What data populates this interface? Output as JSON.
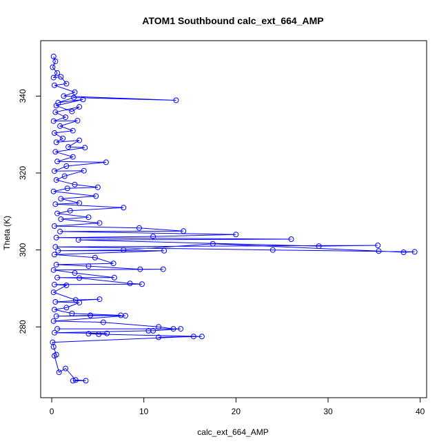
{
  "chart_data": {
    "type": "scatter",
    "title": "ATOM1 Southbound calc_ext_664_AMP",
    "xlabel": "calc_ext_664_AMP",
    "ylabel": "Theta (K)",
    "xlim": [
      -1.2,
      40.7
    ],
    "ylim": [
      261.6,
      354.4
    ],
    "xticks": [
      0,
      10,
      20,
      30,
      40
    ],
    "yticks": [
      280,
      300,
      320,
      340
    ],
    "grid": false,
    "legend": "none",
    "color": "#0000ff",
    "marker": "open-circle",
    "connected": true,
    "series": [
      {
        "points": [
          [
            0.2,
            350.3
          ],
          [
            0.4,
            349.0
          ],
          [
            0.1,
            347.5
          ],
          [
            0.6,
            346.0
          ],
          [
            0.2,
            344.8
          ],
          [
            1.0,
            345.0
          ],
          [
            1.6,
            343.2
          ],
          [
            0.3,
            342.8
          ],
          [
            2.5,
            341.0
          ],
          [
            1.3,
            340.0
          ],
          [
            13.5,
            338.9
          ],
          [
            2.4,
            339.6
          ],
          [
            0.7,
            338.3
          ],
          [
            3.4,
            339.1
          ],
          [
            0.5,
            337.5
          ],
          [
            2.2,
            336.0
          ],
          [
            3.0,
            337.2
          ],
          [
            0.4,
            335.8
          ],
          [
            1.5,
            334.5
          ],
          [
            0.2,
            333.5
          ],
          [
            2.8,
            333.6
          ],
          [
            0.9,
            332.2
          ],
          [
            2.3,
            331.0
          ],
          [
            0.3,
            330.4
          ],
          [
            1.2,
            329.0
          ],
          [
            0.5,
            328.0
          ],
          [
            3.0,
            328.5
          ],
          [
            1.8,
            326.8
          ],
          [
            3.6,
            326.6
          ],
          [
            0.4,
            325.5
          ],
          [
            2.3,
            324.2
          ],
          [
            0.6,
            323.0
          ],
          [
            5.9,
            322.8
          ],
          [
            1.6,
            321.8
          ],
          [
            0.3,
            320.5
          ],
          [
            3.5,
            320.6
          ],
          [
            1.4,
            319.2
          ],
          [
            0.5,
            318.2
          ],
          [
            2.5,
            317.0
          ],
          [
            5.0,
            316.3
          ],
          [
            1.7,
            316.0
          ],
          [
            0.2,
            315.2
          ],
          [
            4.8,
            314.0
          ],
          [
            1.0,
            313.3
          ],
          [
            3.0,
            312.2
          ],
          [
            0.4,
            311.9
          ],
          [
            7.8,
            311.0
          ],
          [
            2.0,
            310.2
          ],
          [
            0.6,
            309.5
          ],
          [
            4.0,
            308.5
          ],
          [
            1.0,
            308.0
          ],
          [
            5.2,
            307.0
          ],
          [
            0.3,
            306.2
          ],
          [
            9.5,
            305.7
          ],
          [
            14.3,
            304.9
          ],
          [
            0.9,
            304.8
          ],
          [
            20.0,
            304.0
          ],
          [
            11.0,
            303.5
          ],
          [
            0.5,
            303.2
          ],
          [
            26.0,
            302.8
          ],
          [
            2.9,
            302.6
          ],
          [
            29.0,
            301.0
          ],
          [
            35.4,
            301.2
          ],
          [
            0.4,
            300.8
          ],
          [
            24.0,
            300.0
          ],
          [
            39.4,
            299.5
          ],
          [
            38.2,
            299.4
          ],
          [
            35.5,
            299.7
          ],
          [
            17.5,
            301.6
          ],
          [
            7.8,
            300.0
          ],
          [
            0.7,
            299.8
          ],
          [
            12.2,
            299.8
          ],
          [
            0.3,
            298.8
          ],
          [
            4.7,
            298.0
          ],
          [
            6.7,
            296.5
          ],
          [
            0.5,
            296.2
          ],
          [
            4.0,
            295.8
          ],
          [
            9.6,
            295.0
          ],
          [
            12.1,
            295.0
          ],
          [
            0.2,
            294.8
          ],
          [
            2.5,
            294.0
          ],
          [
            6.8,
            292.8
          ],
          [
            0.6,
            292.8
          ],
          [
            3.0,
            292.7
          ],
          [
            8.5,
            291.3
          ],
          [
            9.8,
            291.1
          ],
          [
            0.3,
            291.0
          ],
          [
            1.6,
            290.8
          ],
          [
            0.2,
            289.0
          ],
          [
            2.6,
            287.0
          ],
          [
            5.2,
            287.2
          ],
          [
            0.4,
            286.5
          ],
          [
            3.0,
            286.3
          ],
          [
            1.6,
            285.0
          ],
          [
            0.3,
            284.5
          ],
          [
            2.2,
            283.5
          ],
          [
            7.5,
            283.0
          ],
          [
            0.5,
            282.8
          ],
          [
            4.2,
            283.0
          ],
          [
            8.0,
            282.9
          ],
          [
            0.2,
            281.5
          ],
          [
            5.6,
            281.2
          ],
          [
            11.6,
            280.0
          ],
          [
            13.2,
            279.5
          ],
          [
            0.6,
            279.5
          ],
          [
            14.0,
            279.5
          ],
          [
            11.0,
            279.0
          ],
          [
            10.5,
            279.0
          ],
          [
            0.3,
            278.5
          ],
          [
            6.0,
            278.3
          ],
          [
            4.0,
            278.2
          ],
          [
            5.1,
            278.1
          ],
          [
            16.3,
            277.5
          ],
          [
            11.6,
            277.3
          ],
          [
            15.4,
            277.5
          ],
          [
            0.1,
            276.0
          ],
          [
            0.2,
            274.8
          ],
          [
            0.5,
            272.8
          ],
          [
            0.3,
            272.5
          ],
          [
            0.8,
            268.2
          ],
          [
            1.5,
            269.2
          ],
          [
            2.6,
            266.2
          ],
          [
            3.7,
            266.0
          ],
          [
            2.3,
            266.0
          ]
        ]
      }
    ]
  }
}
